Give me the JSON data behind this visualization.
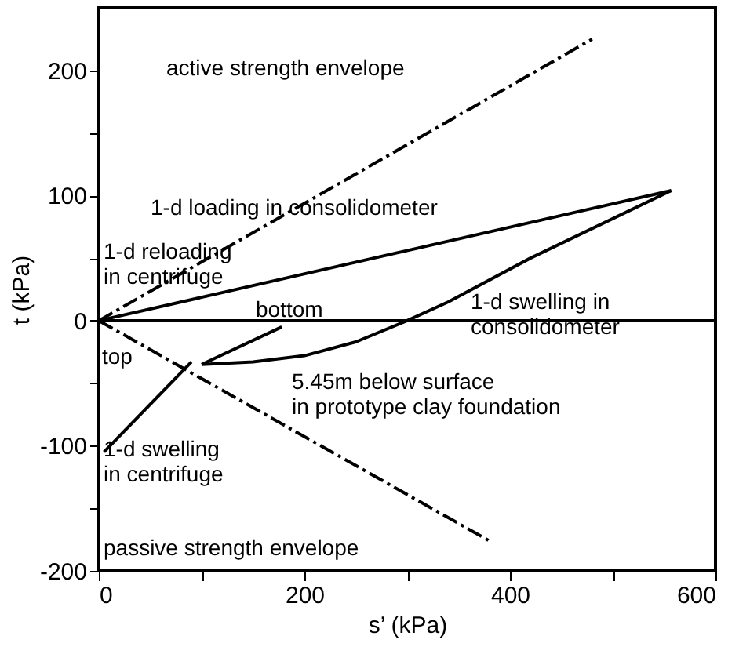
{
  "chart_data": {
    "type": "line",
    "xlabel": "s’ (kPa)",
    "ylabel": "t (kPa)",
    "xlim": [
      0,
      600
    ],
    "ylim": [
      -200,
      250
    ],
    "xticks": [
      0,
      {
        "value": 100,
        "label": null
      },
      200,
      {
        "value": 300,
        "label": null
      },
      400,
      {
        "value": 500,
        "label": null
      },
      600
    ],
    "yticks": [
      -200,
      {
        "value": -150,
        "label": null
      },
      -100,
      {
        "value": -50,
        "label": null
      },
      0,
      {
        "value": 50,
        "label": null
      },
      100,
      {
        "value": 150,
        "label": null
      },
      200
    ],
    "marker": "none",
    "series": [
      {
        "color": "#000000",
        "line_style": "dashed",
        "x": [
          0,
          480
        ],
        "values": [
          0,
          225
        ]
      },
      {
        "color": "#000000",
        "line_style": "dashed",
        "x": [
          0,
          380
        ],
        "values": [
          0,
          -176
        ]
      },
      {
        "color": "#000000",
        "line_style": "solid",
        "x": [
          0,
          557
        ],
        "values": [
          0,
          104
        ]
      },
      {
        "color": "#000000",
        "line_style": "solid",
        "x": [
          557,
          420,
          340,
          300,
          250,
          200,
          150,
          100
        ],
        "values": [
          104,
          50,
          15,
          0,
          -17,
          -28,
          -33,
          -35
        ]
      },
      {
        "color": "#000000",
        "line_style": "solid",
        "x": [
          5,
          90
        ],
        "values": [
          -105,
          -33
        ]
      },
      {
        "color": "#000000",
        "line_style": "solid",
        "x": [
          100,
          178
        ],
        "values": [
          -35,
          -5
        ]
      },
      {
        "color": "#000000",
        "line_style": "solid",
        "x": [
          0,
          600
        ],
        "values": [
          0,
          0
        ]
      }
    ],
    "annotations": [
      "active strength envelope",
      "1-d loading in consolidometer",
      "1-d reloading\nin centrifuge",
      "1-d swelling in\nconsolidometer",
      "bottom",
      "top",
      "5.45m below surface\nin prototype clay foundation",
      "1-d swelling\nin centrifuge",
      "passive strength envelope"
    ]
  }
}
